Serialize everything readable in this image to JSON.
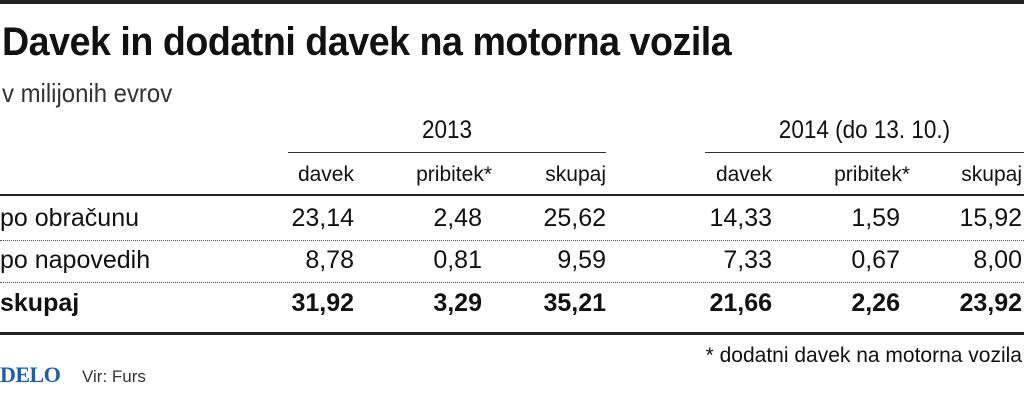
{
  "title": "Davek in dodatni davek na motorna vozila",
  "subtitle": "v milijonih evrov",
  "groups": [
    {
      "label": "2013",
      "columns": [
        "davek",
        "pribitek*",
        "skupaj"
      ]
    },
    {
      "label": "2014 (do 13. 10.)",
      "columns": [
        "davek",
        "pribitek*",
        "skupaj"
      ]
    }
  ],
  "rows": [
    {
      "label": "po obračunu",
      "values": [
        "23,14",
        "2,48",
        "25,62",
        "14,33",
        "1,59",
        "15,92"
      ]
    },
    {
      "label": "po napovedih",
      "values": [
        "8,78",
        "0,81",
        "9,59",
        "7,33",
        "0,67",
        "8,00"
      ]
    },
    {
      "label": "skupaj",
      "values": [
        "31,92",
        "3,29",
        "35,21",
        "21,66",
        "2,26",
        "23,92"
      ]
    }
  ],
  "footnote": "* dodatni davek na motorna vozila",
  "logo": "DELO",
  "source": "Vir: Furs"
}
